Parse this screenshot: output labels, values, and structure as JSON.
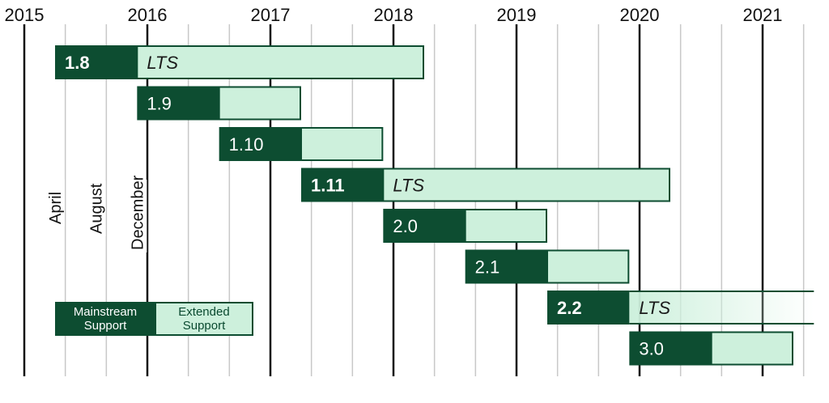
{
  "colors": {
    "mainstream": "#0d4d31",
    "extended": "#cdf0dc",
    "border": "#0d4d31",
    "major_grid": "#111111",
    "minor_grid": "#c8c8c8"
  },
  "chart_data": {
    "type": "gantt",
    "title": "",
    "x_axis": {
      "range": [
        "2015-01",
        "2021-06"
      ],
      "tick_labels": [
        "2015",
        "2016",
        "2017",
        "2018",
        "2019",
        "2020",
        "2021"
      ],
      "minor_grid_months": [
        4,
        8,
        12
      ]
    },
    "month_labels": [
      "April",
      "August",
      "December"
    ],
    "releases": [
      {
        "label": "1.8",
        "bold": true,
        "lts": true,
        "lts_label": "LTS",
        "mainstream_start": "2015-04",
        "extended_start": "2015-12",
        "end": "2018-04"
      },
      {
        "label": "1.9",
        "bold": false,
        "lts": false,
        "lts_label": "",
        "mainstream_start": "2015-12",
        "extended_start": "2016-08",
        "end": "2017-04"
      },
      {
        "label": "1.10",
        "bold": false,
        "lts": false,
        "lts_label": "",
        "mainstream_start": "2016-08",
        "extended_start": "2017-04",
        "end": "2017-12"
      },
      {
        "label": "1.11",
        "bold": true,
        "lts": true,
        "lts_label": "LTS",
        "mainstream_start": "2017-04",
        "extended_start": "2017-12",
        "end": "2020-04"
      },
      {
        "label": "2.0",
        "bold": false,
        "lts": false,
        "lts_label": "",
        "mainstream_start": "2017-12",
        "extended_start": "2018-08",
        "end": "2019-04"
      },
      {
        "label": "2.1",
        "bold": false,
        "lts": false,
        "lts_label": "",
        "mainstream_start": "2018-08",
        "extended_start": "2019-04",
        "end": "2019-12"
      },
      {
        "label": "2.2",
        "bold": true,
        "lts": true,
        "lts_label": "LTS",
        "mainstream_start": "2019-04",
        "extended_start": "2019-12",
        "end": "2021-06",
        "open_ended": true
      },
      {
        "label": "3.0",
        "bold": false,
        "lts": false,
        "lts_label": "",
        "mainstream_start": "2019-12",
        "extended_start": "2020-08",
        "end": "2021-04"
      }
    ],
    "legend": {
      "mainstream": [
        "Mainstream",
        "Support"
      ],
      "extended": [
        "Extended",
        "Support"
      ],
      "placement": "bottom-left"
    }
  }
}
